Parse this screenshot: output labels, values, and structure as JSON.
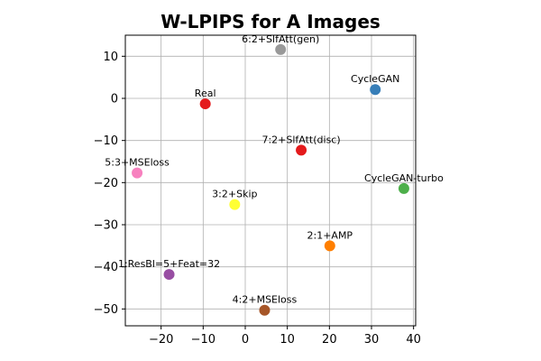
{
  "chart_data": {
    "type": "scatter",
    "title": "W-LPIPS for A Images",
    "xlabel": "",
    "ylabel": "",
    "xlim": [
      -28.5,
      40.5
    ],
    "ylim": [
      -54,
      15
    ],
    "xticks": [
      -20,
      -10,
      0,
      10,
      20,
      30,
      40
    ],
    "yticks": [
      10,
      0,
      -10,
      -20,
      -30,
      -40,
      -50
    ],
    "xtick_labels": [
      "−20",
      "−10",
      "0",
      "10",
      "20",
      "30",
      "40"
    ],
    "ytick_labels": [
      "10",
      "0",
      "−10",
      "−20",
      "−30",
      "−40",
      "−50"
    ],
    "grid": true,
    "legend": "none",
    "points": [
      {
        "label": "6:2+SlfAtt(gen)",
        "x": 8.4,
        "y": 11.6,
        "color": "#999999"
      },
      {
        "label": "CycleGAN",
        "x": 30.9,
        "y": 2.1,
        "color": "#377eb8"
      },
      {
        "label": "Real",
        "x": -9.5,
        "y": -1.3,
        "color": "#e41a1c"
      },
      {
        "label": "7:2+SlfAtt(disc)",
        "x": 13.3,
        "y": -12.3,
        "color": "#e41a1c"
      },
      {
        "label": "5:3+MSEloss",
        "x": -25.7,
        "y": -17.7,
        "color": "#f781bf"
      },
      {
        "label": "CycleGAN-turbo",
        "x": 37.7,
        "y": -21.4,
        "color": "#4daf4a"
      },
      {
        "label": "3:2+Skip",
        "x": -2.5,
        "y": -25.2,
        "color": "#ffff33"
      },
      {
        "label": "2:1+AMP",
        "x": 20.1,
        "y": -35.0,
        "color": "#ff7f00"
      },
      {
        "label": "1:ResBl=5+Feat=32",
        "x": -18.1,
        "y": -41.8,
        "color": "#984ea3"
      },
      {
        "label": "4:2+MSEloss",
        "x": 4.6,
        "y": -50.3,
        "color": "#a65628"
      }
    ]
  }
}
